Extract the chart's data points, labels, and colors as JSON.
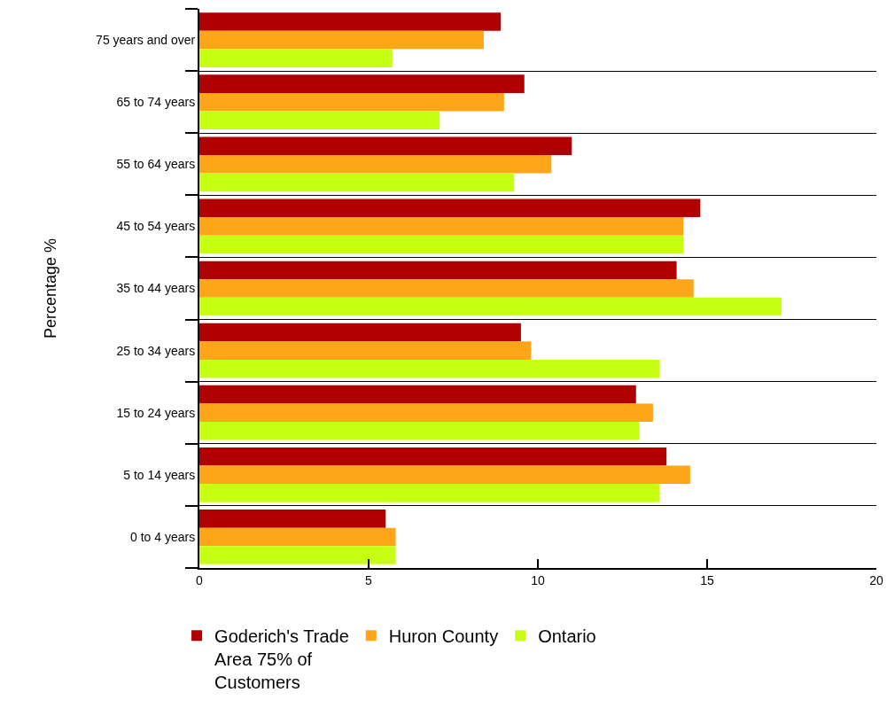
{
  "chart_data": {
    "type": "bar",
    "orientation": "horizontal",
    "ylabel": "Percentage %",
    "categories": [
      "75 years and over",
      "65 to 74 years",
      "55 to 64 years",
      "45 to 54 years",
      "35 to 44 years",
      "25 to 34 years",
      "15 to 24 years",
      "5 to 14 years",
      "0 to 4 years"
    ],
    "series": [
      {
        "name": "Goderich's Trade Area 75% of Customers",
        "color": "#b00000",
        "values": [
          8.9,
          9.6,
          11.0,
          14.8,
          14.1,
          9.5,
          12.9,
          13.8,
          5.5
        ]
      },
      {
        "name": "Huron County",
        "color": "#ffa518",
        "values": [
          8.4,
          9.0,
          10.4,
          14.3,
          14.6,
          9.8,
          13.4,
          14.5,
          5.8
        ]
      },
      {
        "name": "Ontario",
        "color": "#c6ff12",
        "values": [
          5.7,
          7.1,
          9.3,
          14.3,
          17.2,
          13.6,
          13.0,
          13.6,
          5.8
        ]
      }
    ],
    "xlim": [
      0,
      20
    ],
    "xticks": [
      0,
      5,
      10,
      15,
      20
    ],
    "grid": "y",
    "legend": "bottom"
  }
}
